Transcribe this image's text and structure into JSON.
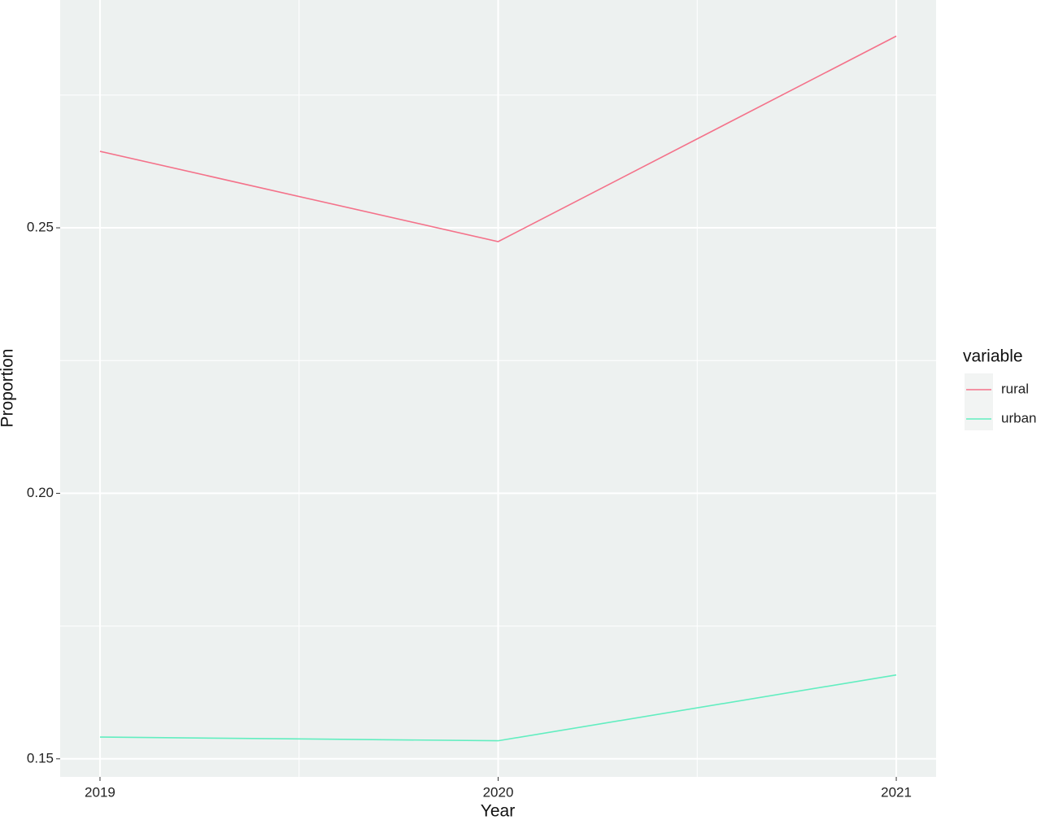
{
  "chart_data": {
    "type": "line",
    "x_label": "Year",
    "y_label": "Proportion",
    "x": [
      2019,
      2020,
      2021
    ],
    "series": [
      {
        "name": "rural",
        "color": "#f4728a",
        "values": [
          0.2644,
          0.2474,
          0.2861
        ]
      },
      {
        "name": "urban",
        "color": "#62eec0",
        "values": [
          0.1541,
          0.1534,
          0.1658
        ]
      }
    ],
    "xlim": [
      2018.9,
      2021.1
    ],
    "xticks": [
      2019,
      2020,
      2021
    ],
    "x_minor_ticks": [
      2019.5,
      2020.5
    ],
    "ylim": [
      0.1466,
      0.2929
    ],
    "yticks": [
      {
        "value": 0.15,
        "label": "0.15"
      },
      {
        "value": 0.2,
        "label": "0.20"
      },
      0.25
    ],
    "y_minor_ticks": [
      0.175,
      0.225,
      0.275
    ],
    "grid": true,
    "legend_title": "variable",
    "legend": "right"
  }
}
